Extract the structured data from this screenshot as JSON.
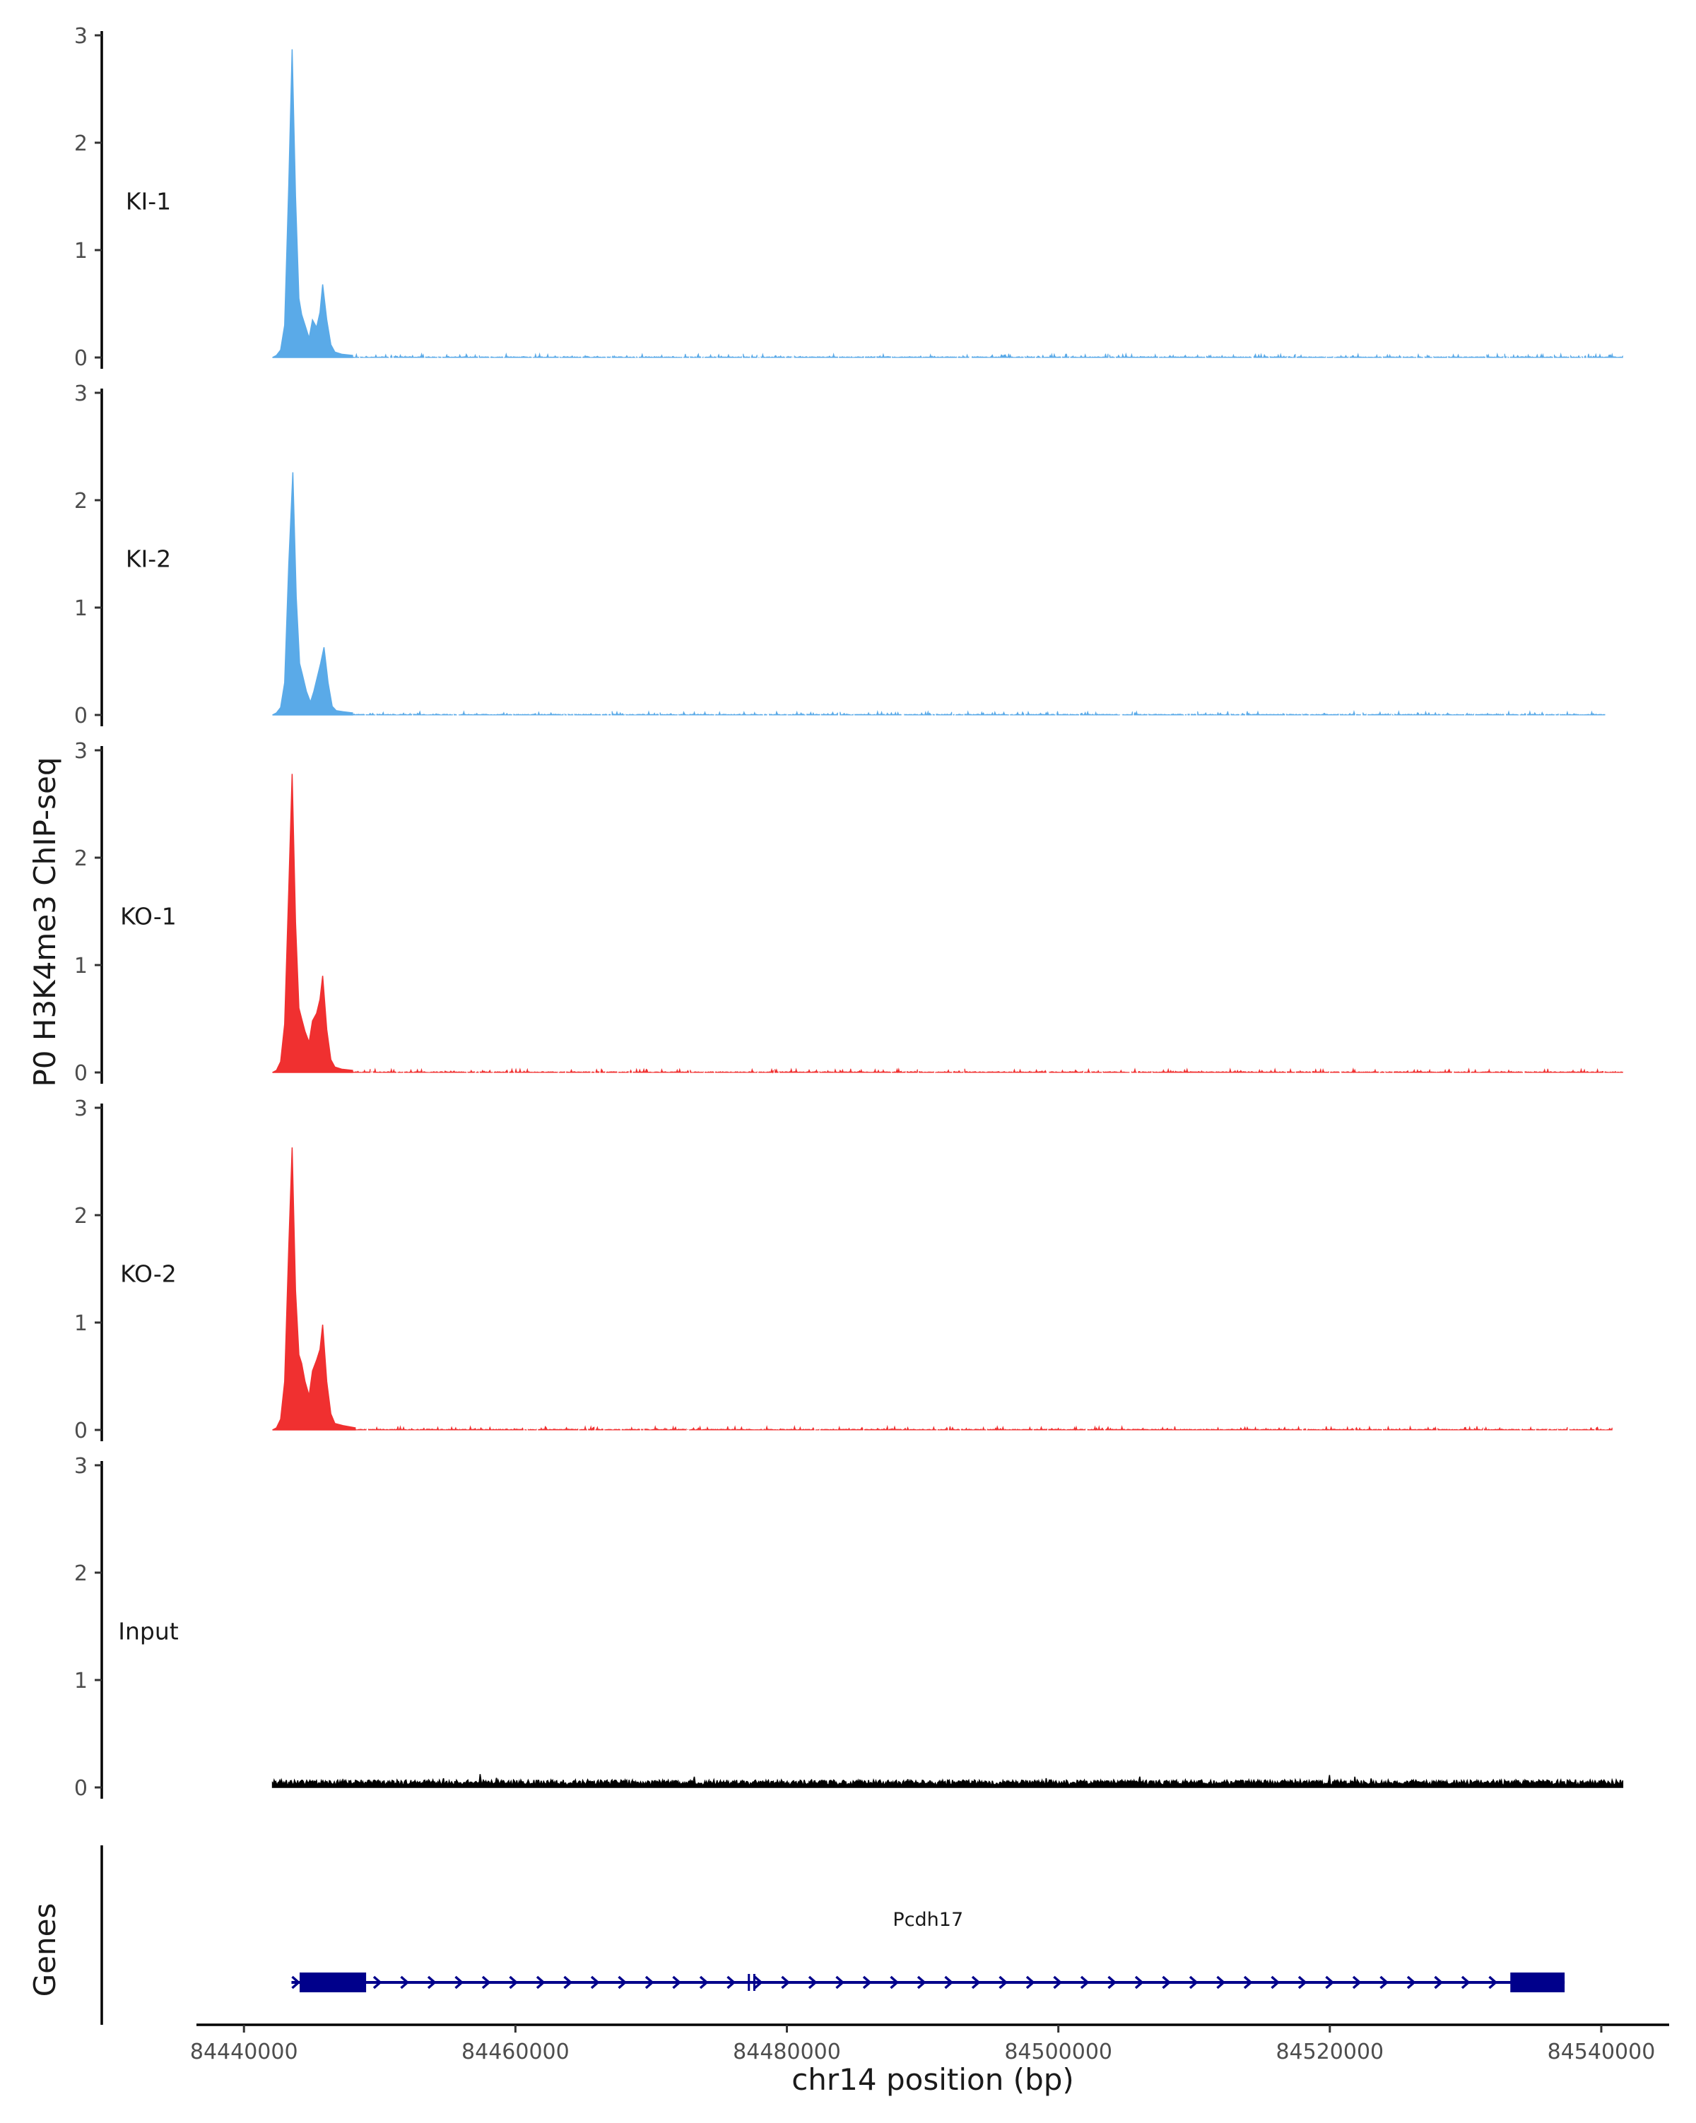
{
  "chart_data": {
    "type": "area",
    "title": "",
    "ylabel": "P0 H3K4me3 ChIP-seq",
    "xlabel": "chr14 position (bp)",
    "genes_label": "Genes",
    "ylim": [
      0,
      3
    ],
    "y_ticks": [
      0,
      1,
      2,
      3
    ],
    "xlim": [
      84436500,
      84545000
    ],
    "x_ticks": [
      84440000,
      84460000,
      84480000,
      84500000,
      84520000,
      84540000
    ],
    "x_tick_labels": [
      "84440000",
      "84460000",
      "84480000",
      "84500000",
      "84520000",
      "84540000"
    ],
    "grid": false,
    "legend": "none",
    "series": [
      {
        "name": "KI-1",
        "color": "#5aaae8",
        "x_range": [
          84442100,
          84541600
        ],
        "peaks": [
          {
            "x": [
              84442100,
              84442400,
              84442700,
              84443000,
              84443300,
              84443550,
              84443800,
              84444050,
              84444250,
              84444500,
              84444800,
              84445050,
              84445350,
              84445600,
              84445800,
              84446100,
              84446400,
              84446700,
              84447200,
              84448000
            ],
            "y": [
              0.0,
              0.02,
              0.07,
              0.3,
              1.6,
              2.87,
              1.5,
              0.55,
              0.4,
              0.3,
              0.18,
              0.35,
              0.28,
              0.42,
              0.68,
              0.35,
              0.12,
              0.05,
              0.03,
              0.02
            ]
          }
        ]
      },
      {
        "name": "KI-2",
        "color": "#5aaae8",
        "x_range": [
          84442100,
          84540300
        ],
        "peaks": [
          {
            "x": [
              84442100,
              84442400,
              84442700,
              84443000,
              84443300,
              84443600,
              84443850,
              84444100,
              84444300,
              84444600,
              84444900,
              84445150,
              84445400,
              84445650,
              84445900,
              84446200,
              84446500,
              84446800,
              84447300,
              84448000
            ],
            "y": [
              0.0,
              0.02,
              0.07,
              0.3,
              1.4,
              2.26,
              1.1,
              0.48,
              0.38,
              0.22,
              0.12,
              0.22,
              0.35,
              0.48,
              0.63,
              0.3,
              0.08,
              0.04,
              0.03,
              0.02
            ]
          }
        ]
      },
      {
        "name": "KO-1",
        "color": "#f03030",
        "x_range": [
          84442100,
          84541600
        ],
        "peaks": [
          {
            "x": [
              84442100,
              84442400,
              84442700,
              84443000,
              84443300,
              84443550,
              84443800,
              84444050,
              84444250,
              84444500,
              84444800,
              84445050,
              84445350,
              84445600,
              84445800,
              84446100,
              84446400,
              84446700,
              84447200,
              84448000
            ],
            "y": [
              0.0,
              0.02,
              0.1,
              0.45,
              1.7,
              2.78,
              1.4,
              0.6,
              0.5,
              0.38,
              0.28,
              0.48,
              0.55,
              0.68,
              0.9,
              0.4,
              0.12,
              0.05,
              0.03,
              0.02
            ]
          }
        ]
      },
      {
        "name": "KO-2",
        "color": "#f03030",
        "x_range": [
          84442100,
          84540800
        ],
        "peaks": [
          {
            "x": [
              84442100,
              84442400,
              84442700,
              84443000,
              84443300,
              84443550,
              84443800,
              84444050,
              84444250,
              84444500,
              84444800,
              84445050,
              84445350,
              84445600,
              84445800,
              84446100,
              84446400,
              84446700,
              84447300,
              84448200
            ],
            "y": [
              0.0,
              0.02,
              0.1,
              0.45,
              1.7,
              2.63,
              1.3,
              0.7,
              0.62,
              0.45,
              0.32,
              0.55,
              0.65,
              0.75,
              0.98,
              0.45,
              0.15,
              0.06,
              0.04,
              0.02
            ]
          }
        ]
      },
      {
        "name": "Input",
        "color": "#000000",
        "x_range": [
          84442100,
          84541600
        ],
        "peaks": []
      }
    ],
    "genes": [
      {
        "name": "Pcdh17",
        "color": "#00008b",
        "strand": "+",
        "start": 84443500,
        "end": 84537300,
        "exons": [
          [
            84444100,
            84449000
          ],
          [
            84533300,
            84537300
          ]
        ],
        "extra_marks": [
          84477200,
          84477600
        ]
      }
    ]
  }
}
